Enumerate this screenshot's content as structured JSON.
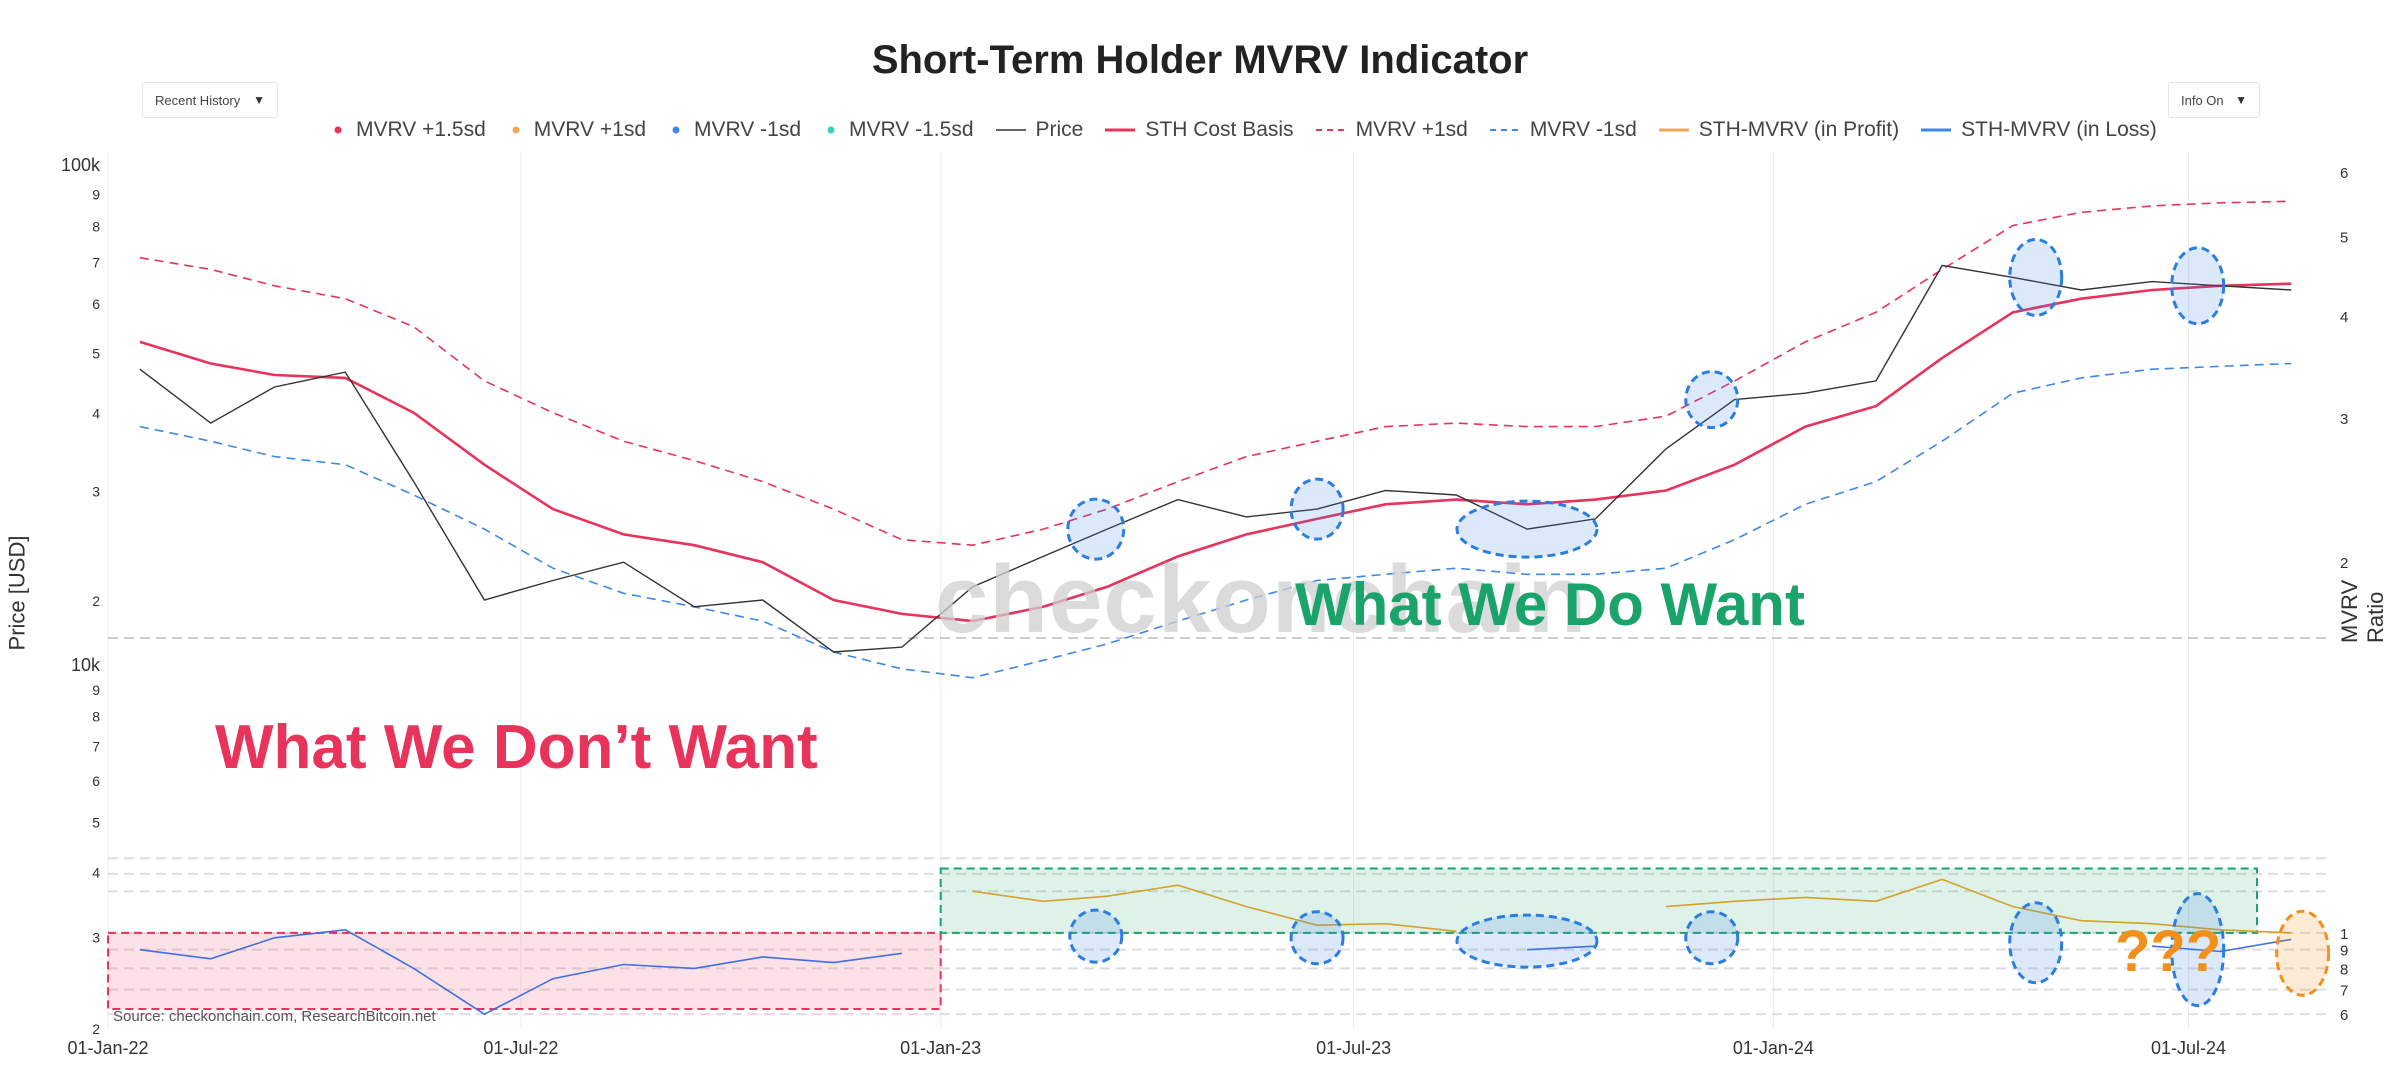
{
  "title": "Short-Term Holder MVRV Indicator",
  "controls": {
    "history_dropdown": "Recent History",
    "info_dropdown": "Info On"
  },
  "colors": {
    "price": "#333333",
    "cost_basis": "#e8335a",
    "upper_band": "#e8335a",
    "lower_band": "#3f87e8",
    "mvrv_profit": "#d4a12a",
    "mvrv_loss": "#3f6fe0",
    "want": "#1aa36a",
    "dont_want": "#e8335a",
    "unknown": "#f2901c"
  },
  "legend": [
    {
      "label": "MVRV +1.5sd",
      "symbol": "dot",
      "color": "#e8335a"
    },
    {
      "label": "MVRV +1sd",
      "symbol": "dot",
      "color": "#f2a65a"
    },
    {
      "label": "MVRV -1sd",
      "symbol": "dot",
      "color": "#3f87e8"
    },
    {
      "label": "MVRV -1.5sd",
      "symbol": "dot",
      "color": "#34d1c4"
    },
    {
      "label": "Price",
      "symbol": "line",
      "color": "#333333"
    },
    {
      "label": "STH Cost Basis",
      "symbol": "line",
      "color": "#e8335a"
    },
    {
      "label": "MVRV +1sd",
      "symbol": "dash",
      "color": "#e8335a"
    },
    {
      "label": "MVRV -1sd",
      "symbol": "dash",
      "color": "#3f87e8"
    },
    {
      "label": "STH-MVRV (in Profit)",
      "symbol": "line",
      "color": "#f2a65a"
    },
    {
      "label": "STH-MVRV (in Loss)",
      "symbol": "line",
      "color": "#3f87e8"
    }
  ],
  "axes": {
    "y_left_title": "Price [USD]",
    "y_right_title": "MVRV Ratio",
    "price_ticks": [
      "100k",
      "9",
      "8",
      "7",
      "6",
      "5",
      "4",
      "3",
      "2",
      "10k",
      "9",
      "8",
      "7",
      "6",
      "5",
      "4",
      "3",
      "2"
    ],
    "mvrv_ticks": [
      "6",
      "5",
      "4",
      "3",
      "2",
      "1",
      "9",
      "8",
      "7",
      "6"
    ],
    "x_ticks": [
      "01-Jan-22",
      "01-Jul-22",
      "01-Jan-23",
      "01-Jul-23",
      "01-Jan-24",
      "01-Jul-24"
    ]
  },
  "annotations": {
    "want": "What We Do Want",
    "dont_want": "What We Don’t Want",
    "unknown": "???",
    "watermark": "checkonchain",
    "source": "Source: checkonchain.com, ResearchBitcoin.net"
  },
  "chart_data": {
    "type": "line",
    "title": "Short-Term Holder MVRV Indicator",
    "x_range": [
      "2022-01-01",
      "2024-08-31"
    ],
    "price_axis": {
      "scale": "log",
      "range": [
        20000,
        105000
      ]
    },
    "mvrv_axis": {
      "scale": "log",
      "range": [
        0.55,
        6
      ]
    },
    "x": [
      "2022-01",
      "2022-02",
      "2022-03",
      "2022-04",
      "2022-05",
      "2022-06",
      "2022-07",
      "2022-08",
      "2022-09",
      "2022-10",
      "2022-11",
      "2022-12",
      "2023-01",
      "2023-02",
      "2023-03",
      "2023-04",
      "2023-05",
      "2023-06",
      "2023-07",
      "2023-08",
      "2023-09",
      "2023-10",
      "2023-11",
      "2023-12",
      "2024-01",
      "2024-02",
      "2024-03",
      "2024-04",
      "2024-05",
      "2024-06",
      "2024-07",
      "2024-08"
    ],
    "series": [
      {
        "name": "Price",
        "values": [
          47000,
          38500,
          44000,
          46500,
          31000,
          20000,
          21500,
          23000,
          19500,
          20000,
          16500,
          16800,
          21000,
          23500,
          26000,
          29000,
          27200,
          28000,
          30000,
          29500,
          26000,
          27000,
          35000,
          42000,
          43000,
          45000,
          69000,
          66000,
          63000,
          65000,
          64000,
          63000
        ]
      },
      {
        "name": "STH Cost Basis",
        "values": [
          52000,
          48000,
          46000,
          45500,
          40000,
          33000,
          28000,
          25500,
          24500,
          23000,
          20000,
          19000,
          18500,
          19500,
          21000,
          23500,
          25500,
          27000,
          28500,
          29000,
          28500,
          29000,
          30000,
          33000,
          38000,
          41000,
          49000,
          58000,
          61000,
          63000,
          64000,
          64500
        ]
      },
      {
        "name": "MVRV +1sd",
        "values": [
          71000,
          68000,
          64000,
          61000,
          55000,
          45000,
          40000,
          36000,
          33500,
          31000,
          28000,
          25000,
          24500,
          26000,
          28000,
          31000,
          34000,
          36000,
          38000,
          38500,
          38000,
          38000,
          39500,
          45000,
          52000,
          58000,
          68000,
          80000,
          84000,
          86000,
          87000,
          87500
        ]
      },
      {
        "name": "MVRV -1sd",
        "values": [
          38000,
          36000,
          34000,
          33000,
          29500,
          26000,
          22500,
          20500,
          19500,
          18500,
          16500,
          15500,
          15000,
          16000,
          17000,
          18500,
          20000,
          21500,
          22000,
          22500,
          22000,
          22000,
          22500,
          25000,
          28500,
          31000,
          36000,
          43000,
          45500,
          47000,
          47500,
          48000
        ]
      },
      {
        "name": "STH-MVRV (in Profit)",
        "values": [
          null,
          null,
          null,
          null,
          null,
          null,
          null,
          null,
          null,
          null,
          null,
          null,
          1.3,
          1.22,
          1.26,
          1.35,
          1.18,
          1.05,
          1.06,
          1.01,
          null,
          null,
          1.18,
          1.22,
          1.25,
          1.22,
          1.4,
          1.18,
          1.08,
          1.06,
          1.02,
          1.0
        ]
      },
      {
        "name": "STH-MVRV (in Loss)",
        "values": [
          0.9,
          0.85,
          0.97,
          1.02,
          0.8,
          0.6,
          0.75,
          0.82,
          0.8,
          0.86,
          0.83,
          0.88,
          null,
          null,
          null,
          null,
          null,
          null,
          null,
          null,
          0.9,
          0.92,
          null,
          null,
          null,
          null,
          null,
          null,
          null,
          0.92,
          0.89,
          0.96
        ]
      }
    ]
  }
}
